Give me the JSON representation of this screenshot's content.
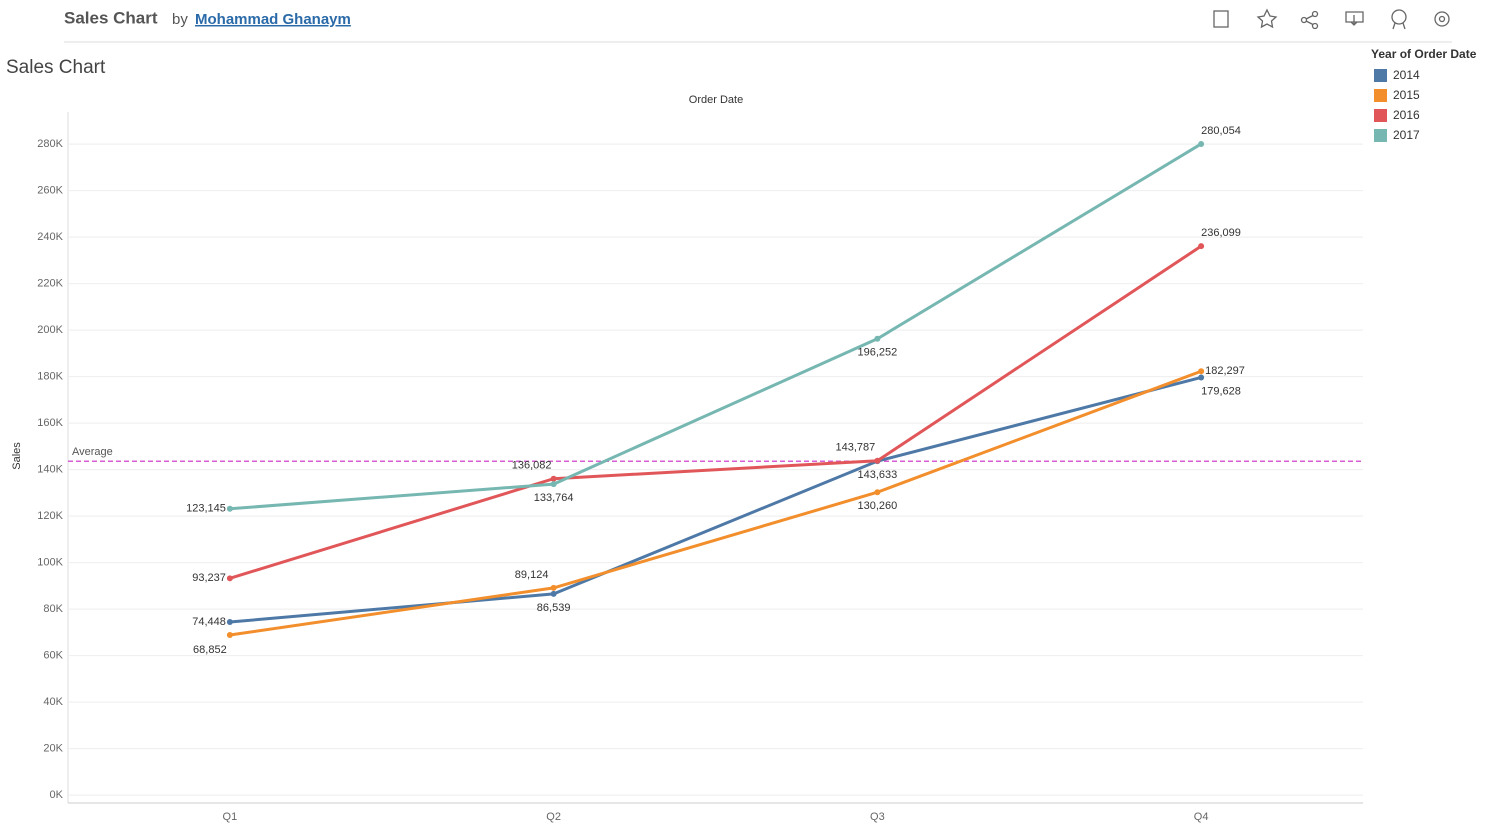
{
  "header": {
    "title": "Sales Chart",
    "by": "by",
    "author": "Mohammad Ghanaym"
  },
  "chart_data": {
    "type": "line",
    "title": "Sales Chart",
    "x_axis_title": "Order Date",
    "y_axis_title": "Sales",
    "categories": [
      "Q1",
      "Q2",
      "Q3",
      "Q4"
    ],
    "legend_title": "Year of Order Date",
    "series": [
      {
        "name": "2014",
        "color": "#4e79a7",
        "values": [
          74448,
          86539,
          143633,
          179628
        ],
        "value_labels": [
          "74,448",
          "86,539",
          "143,633",
          "179,628"
        ]
      },
      {
        "name": "2015",
        "color": "#f28e2b",
        "values": [
          68852,
          89124,
          130260,
          182297
        ],
        "value_labels": [
          "68,852",
          "89,124",
          "130,260",
          "182,297"
        ]
      },
      {
        "name": "2016",
        "color": "#e15759",
        "values": [
          93237,
          136082,
          143787,
          236099
        ],
        "value_labels": [
          "93,237",
          "136,082",
          "143,787",
          "236,099"
        ]
      },
      {
        "name": "2017",
        "color": "#76b7b2",
        "values": [
          123145,
          133764,
          196252,
          280054
        ],
        "value_labels": [
          "123,145",
          "133,764",
          "196,252",
          "280,054"
        ]
      }
    ],
    "reference_line": {
      "label": "Average",
      "value": 143575,
      "color": "#d65fd6"
    },
    "ylim": [
      -3400,
      293800
    ],
    "yticks": [
      {
        "value": 0,
        "label": "0K"
      },
      {
        "value": 20000,
        "label": "20K"
      },
      {
        "value": 40000,
        "label": "40K"
      },
      {
        "value": 60000,
        "label": "60K"
      },
      {
        "value": 80000,
        "label": "80K"
      },
      {
        "value": 100000,
        "label": "100K"
      },
      {
        "value": 120000,
        "label": "120K"
      },
      {
        "value": 140000,
        "label": "140K"
      },
      {
        "value": 160000,
        "label": "160K"
      },
      {
        "value": 180000,
        "label": "180K"
      },
      {
        "value": 200000,
        "label": "200K"
      },
      {
        "value": 220000,
        "label": "220K"
      },
      {
        "value": 240000,
        "label": "240K"
      },
      {
        "value": 260000,
        "label": "260K"
      },
      {
        "value": 280000,
        "label": "280K"
      }
    ],
    "grid": true,
    "legend": "top-right"
  }
}
